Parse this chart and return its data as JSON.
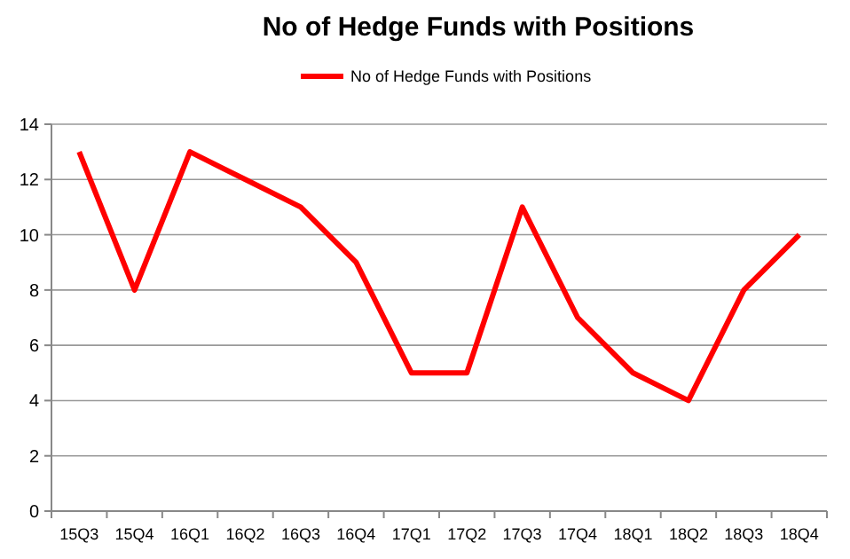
{
  "chart_data": {
    "type": "line",
    "title": "No of Hedge Funds with Positions",
    "categories": [
      "15Q3",
      "15Q4",
      "16Q1",
      "16Q2",
      "16Q3",
      "16Q4",
      "17Q1",
      "17Q2",
      "17Q3",
      "17Q4",
      "18Q1",
      "18Q2",
      "18Q3",
      "18Q4"
    ],
    "series": [
      {
        "name": "No of Hedge Funds with Positions",
        "color": "#ff0000",
        "values": [
          13,
          8,
          13,
          12,
          11,
          9,
          5,
          5,
          11,
          7,
          5,
          4,
          8,
          10
        ]
      }
    ],
    "ylim": [
      0,
      14
    ],
    "yticks": [
      0,
      2,
      4,
      6,
      8,
      10,
      12,
      14
    ],
    "grid": "y",
    "legend": "top",
    "marker": "none"
  }
}
